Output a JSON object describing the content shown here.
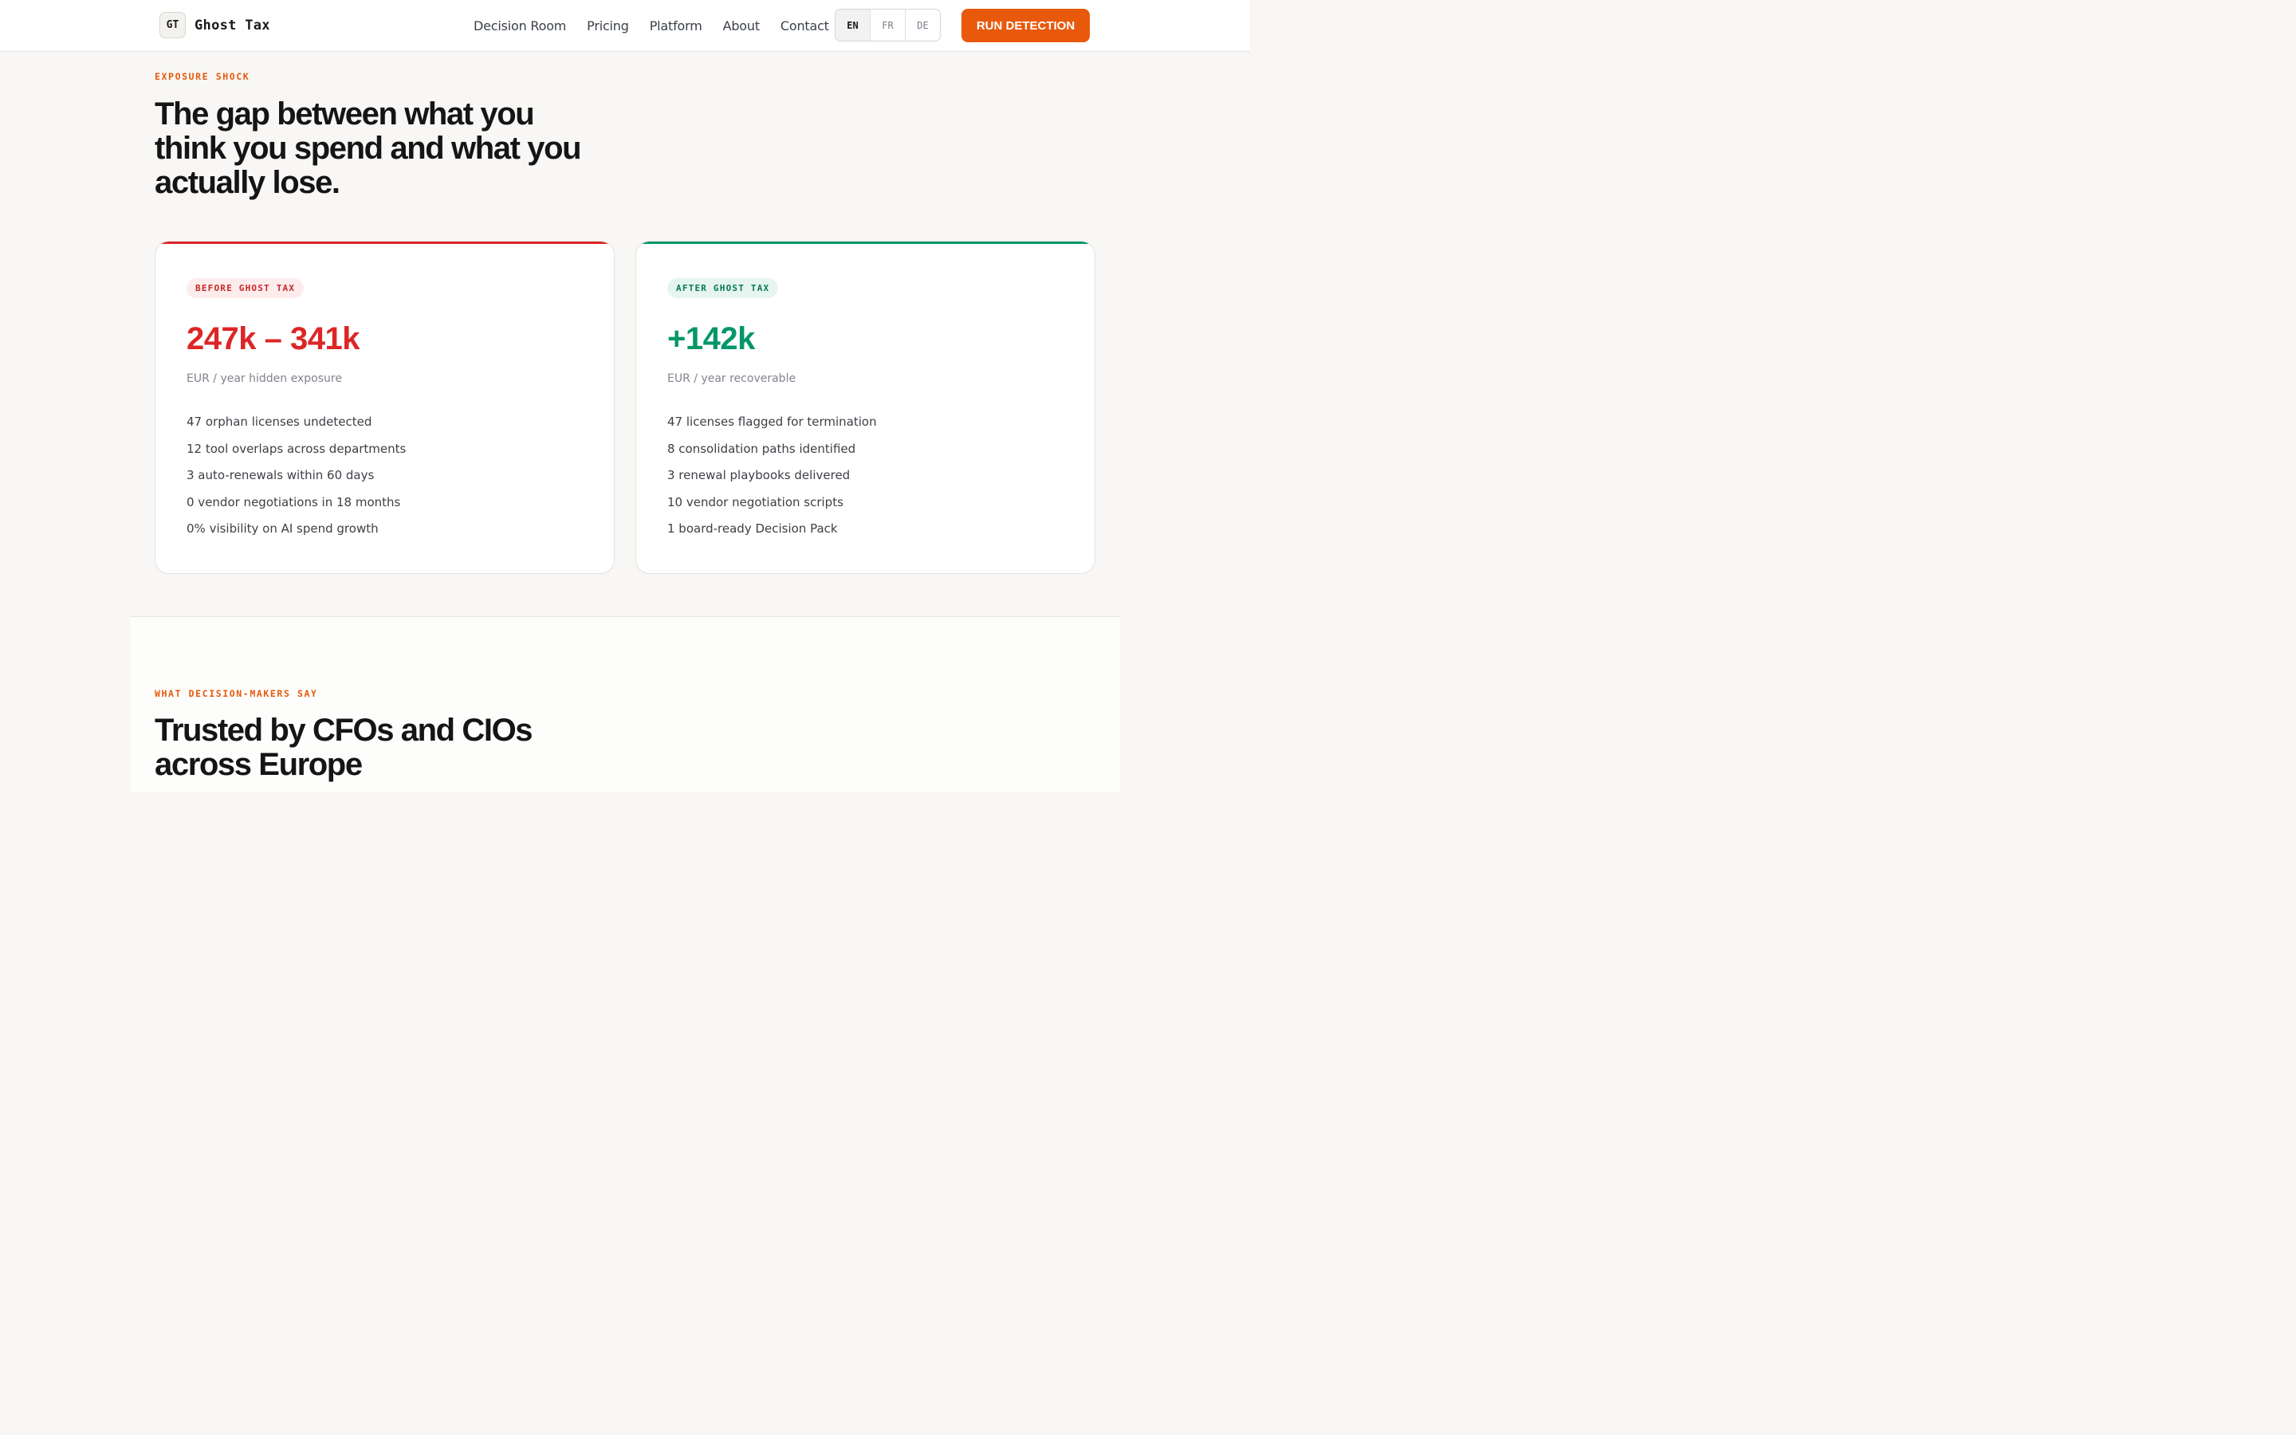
{
  "header": {
    "logo_mark": "GT",
    "brand": "Ghost Tax",
    "nav": [
      "Decision Room",
      "Pricing",
      "Platform",
      "About",
      "Contact"
    ],
    "languages": [
      "EN",
      "FR",
      "DE"
    ],
    "active_language": "EN",
    "cta": "RUN DETECTION"
  },
  "exposure": {
    "eyebrow": "EXPOSURE SHOCK",
    "headline_lines": [
      "The gap between what you",
      "think you spend and what you",
      "actually lose."
    ],
    "before": {
      "label": "BEFORE GHOST TAX",
      "figure": "247k – 341k",
      "sub": "EUR / year hidden exposure",
      "items": [
        "47 orphan licenses undetected",
        "12 tool overlaps across departments",
        "3 auto-renewals within 60 days",
        "0 vendor negotiations in 18 months",
        "0% visibility on AI spend growth"
      ]
    },
    "after": {
      "label": "AFTER GHOST TAX",
      "figure": "+142k",
      "sub": "EUR / year recoverable",
      "items": [
        "47 licenses flagged for termination",
        "8 consolidation paths identified",
        "3 renewal playbooks delivered",
        "10 vendor negotiation scripts",
        "1 board-ready Decision Pack"
      ]
    }
  },
  "testimonials": {
    "eyebrow": "WHAT DECISION-MAKERS SAY",
    "headline_lines": [
      "Trusted by CFOs and CIOs",
      "across Europe"
    ]
  },
  "colors": {
    "accent": "#e8590c",
    "before": "#dc2626",
    "after": "#059669",
    "background": "#f8f7f5"
  }
}
